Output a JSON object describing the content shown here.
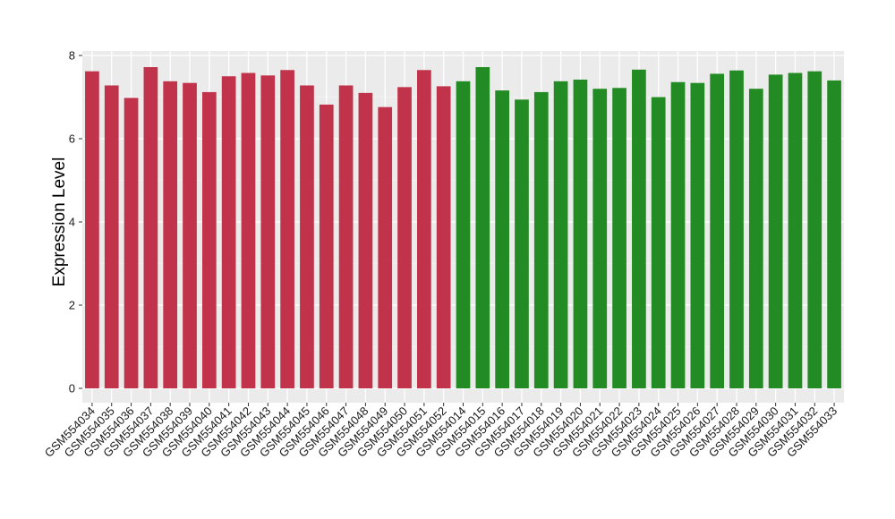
{
  "chart_data": {
    "type": "bar",
    "title": "",
    "xlabel": "",
    "ylabel": "Expression Level",
    "ylim": [
      0,
      8.2
    ],
    "yticks": [
      0,
      2,
      4,
      6,
      8
    ],
    "grid": true,
    "legend": "none",
    "panel_background": "#ebebeb",
    "colors": {
      "group1": "#c1334a",
      "group2": "#238b23"
    },
    "bars": [
      {
        "category": "GSM554034",
        "value": 7.62,
        "group": "group1"
      },
      {
        "category": "GSM554035",
        "value": 7.28,
        "group": "group1"
      },
      {
        "category": "GSM554036",
        "value": 6.98,
        "group": "group1"
      },
      {
        "category": "GSM554037",
        "value": 7.72,
        "group": "group1"
      },
      {
        "category": "GSM554038",
        "value": 7.38,
        "group": "group1"
      },
      {
        "category": "GSM554039",
        "value": 7.34,
        "group": "group1"
      },
      {
        "category": "GSM554040",
        "value": 7.12,
        "group": "group1"
      },
      {
        "category": "GSM554041",
        "value": 7.5,
        "group": "group1"
      },
      {
        "category": "GSM554042",
        "value": 7.58,
        "group": "group1"
      },
      {
        "category": "GSM554043",
        "value": 7.52,
        "group": "group1"
      },
      {
        "category": "GSM554044",
        "value": 7.65,
        "group": "group1"
      },
      {
        "category": "GSM554045",
        "value": 7.28,
        "group": "group1"
      },
      {
        "category": "GSM554046",
        "value": 6.82,
        "group": "group1"
      },
      {
        "category": "GSM554047",
        "value": 7.28,
        "group": "group1"
      },
      {
        "category": "GSM554048",
        "value": 7.1,
        "group": "group1"
      },
      {
        "category": "GSM554049",
        "value": 6.76,
        "group": "group1"
      },
      {
        "category": "GSM554050",
        "value": 7.24,
        "group": "group1"
      },
      {
        "category": "GSM554051",
        "value": 7.65,
        "group": "group1"
      },
      {
        "category": "GSM554052",
        "value": 7.26,
        "group": "group1"
      },
      {
        "category": "GSM554014",
        "value": 7.38,
        "group": "group2"
      },
      {
        "category": "GSM554015",
        "value": 7.72,
        "group": "group2"
      },
      {
        "category": "GSM554016",
        "value": 7.16,
        "group": "group2"
      },
      {
        "category": "GSM554017",
        "value": 6.94,
        "group": "group2"
      },
      {
        "category": "GSM554018",
        "value": 7.12,
        "group": "group2"
      },
      {
        "category": "GSM554019",
        "value": 7.38,
        "group": "group2"
      },
      {
        "category": "GSM554020",
        "value": 7.42,
        "group": "group2"
      },
      {
        "category": "GSM554021",
        "value": 7.2,
        "group": "group2"
      },
      {
        "category": "GSM554022",
        "value": 7.22,
        "group": "group2"
      },
      {
        "category": "GSM554023",
        "value": 7.66,
        "group": "group2"
      },
      {
        "category": "GSM554024",
        "value": 7.0,
        "group": "group2"
      },
      {
        "category": "GSM554025",
        "value": 7.36,
        "group": "group2"
      },
      {
        "category": "GSM554026",
        "value": 7.34,
        "group": "group2"
      },
      {
        "category": "GSM554027",
        "value": 7.56,
        "group": "group2"
      },
      {
        "category": "GSM554028",
        "value": 7.64,
        "group": "group2"
      },
      {
        "category": "GSM554029",
        "value": 7.2,
        "group": "group2"
      },
      {
        "category": "GSM554030",
        "value": 7.54,
        "group": "group2"
      },
      {
        "category": "GSM554031",
        "value": 7.58,
        "group": "group2"
      },
      {
        "category": "GSM554032",
        "value": 7.62,
        "group": "group2"
      },
      {
        "category": "GSM554033",
        "value": 7.4,
        "group": "group2"
      }
    ]
  }
}
